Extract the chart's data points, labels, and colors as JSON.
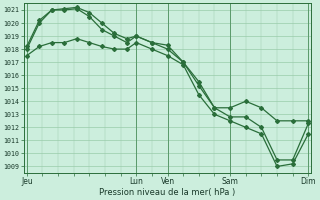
{
  "bg_color": "#cceedd",
  "grid_color": "#99ccaa",
  "line_color": "#2a6e3a",
  "marker_color": "#2a6e3a",
  "xlabel": "Pression niveau de la mer( hPa )",
  "ylim": [
    1008.5,
    1021.5
  ],
  "yticks": [
    1009,
    1010,
    1011,
    1012,
    1013,
    1014,
    1015,
    1016,
    1017,
    1018,
    1019,
    1020,
    1021
  ],
  "xtick_labels": [
    "Jeu",
    "Lun",
    "Ven",
    "Sam",
    "Dim"
  ],
  "xtick_positions": [
    0.0,
    3.5,
    4.5,
    6.5,
    9.0
  ],
  "vline_positions": [
    0.0,
    3.5,
    4.5,
    6.5,
    9.0
  ],
  "x_total": 9.0,
  "line1_x": [
    0.0,
    0.4,
    0.8,
    1.2,
    1.6,
    2.0,
    2.4,
    2.8,
    3.2,
    3.5,
    4.0,
    4.5,
    5.0,
    5.5,
    6.0,
    6.5,
    7.0,
    7.5,
    8.0,
    8.5,
    9.0
  ],
  "line1_y": [
    1018.0,
    1020.0,
    1021.0,
    1021.1,
    1021.2,
    1020.8,
    1020.0,
    1019.2,
    1018.8,
    1019.0,
    1018.5,
    1018.3,
    1017.0,
    1015.2,
    1013.5,
    1013.5,
    1014.0,
    1013.5,
    1012.5,
    1012.5,
    1012.5
  ],
  "line2_x": [
    0.0,
    0.4,
    0.8,
    1.2,
    1.6,
    2.0,
    2.4,
    2.8,
    3.2,
    3.5,
    4.0,
    4.5,
    5.0,
    5.5,
    6.0,
    6.5,
    7.0,
    7.5,
    8.0,
    8.5,
    9.0
  ],
  "line2_y": [
    1018.2,
    1020.2,
    1021.0,
    1021.0,
    1021.1,
    1020.5,
    1019.5,
    1019.0,
    1018.5,
    1019.0,
    1018.5,
    1018.0,
    1017.0,
    1015.5,
    1013.5,
    1012.8,
    1012.8,
    1012.0,
    1009.5,
    1009.5,
    1012.3
  ],
  "line3_x": [
    0.0,
    0.4,
    0.8,
    1.2,
    1.6,
    2.0,
    2.4,
    2.8,
    3.2,
    3.5,
    4.0,
    4.5,
    5.0,
    5.5,
    6.0,
    6.5,
    7.0,
    7.5,
    8.0,
    8.5,
    9.0
  ],
  "line3_y": [
    1017.5,
    1018.2,
    1018.5,
    1018.5,
    1018.8,
    1018.5,
    1018.2,
    1018.0,
    1018.0,
    1018.5,
    1018.0,
    1017.5,
    1016.8,
    1014.5,
    1013.0,
    1012.5,
    1012.0,
    1011.5,
    1009.0,
    1009.2,
    1011.5
  ]
}
